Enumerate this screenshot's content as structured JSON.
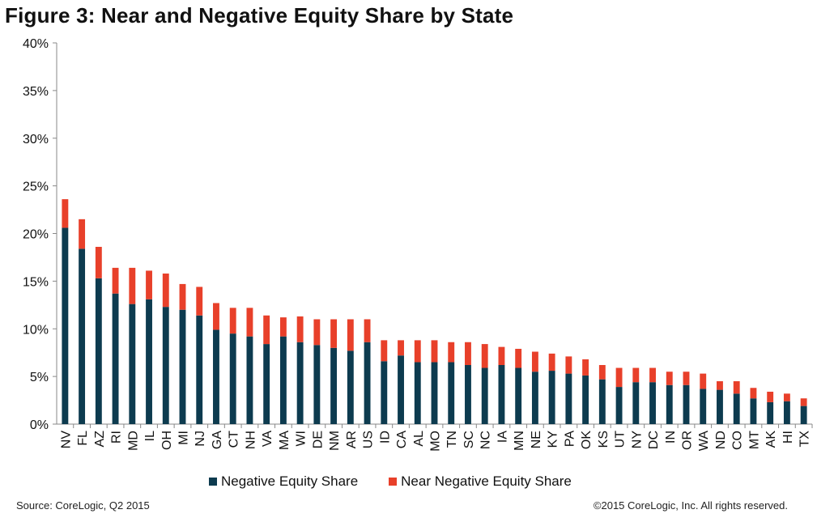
{
  "title": "Figure 3: Near and Negative Equity Share by State",
  "source": "Source: CoreLogic, Q2  2015",
  "copyright": "©2015 CoreLogic, Inc. All rights reserved.",
  "colors": {
    "negative": "#0d3b4f",
    "near_negative": "#e8402a"
  },
  "chart_data": {
    "type": "bar",
    "stacked": true,
    "categories": [
      "NV",
      "FL",
      "AZ",
      "RI",
      "MD",
      "IL",
      "OH",
      "MI",
      "NJ",
      "GA",
      "CT",
      "NH",
      "VA",
      "MA",
      "WI",
      "DE",
      "NM",
      "AR",
      "US",
      "ID",
      "CA",
      "AL",
      "MO",
      "TN",
      "SC",
      "NC",
      "IA",
      "MN",
      "NE",
      "KY",
      "PA",
      "OK",
      "KS",
      "UT",
      "NY",
      "DC",
      "IN",
      "OR",
      "WA",
      "ND",
      "CO",
      "MT",
      "AK",
      "HI",
      "TX"
    ],
    "series": [
      {
        "name": "Negative Equity Share",
        "values": [
          20.6,
          18.4,
          15.3,
          13.7,
          12.6,
          13.1,
          12.3,
          12.0,
          11.4,
          9.9,
          9.5,
          9.2,
          8.4,
          9.2,
          8.6,
          8.3,
          8.0,
          7.7,
          8.6,
          6.6,
          7.2,
          6.5,
          6.5,
          6.5,
          6.2,
          5.9,
          6.2,
          5.9,
          5.5,
          5.6,
          5.3,
          5.1,
          4.7,
          3.9,
          4.4,
          4.4,
          4.1,
          4.1,
          3.7,
          3.6,
          3.2,
          2.7,
          2.3,
          2.4,
          1.9
        ]
      },
      {
        "name": "Near Negative Equity Share",
        "values": [
          3.0,
          3.1,
          3.3,
          2.7,
          3.8,
          3.0,
          3.5,
          2.7,
          3.0,
          2.8,
          2.7,
          3.0,
          3.0,
          2.0,
          2.7,
          2.7,
          3.0,
          3.3,
          2.4,
          2.2,
          1.6,
          2.3,
          2.3,
          2.1,
          2.4,
          2.5,
          1.9,
          2.0,
          2.1,
          1.8,
          1.8,
          1.7,
          1.5,
          2.0,
          1.5,
          1.5,
          1.4,
          1.4,
          1.6,
          0.9,
          1.3,
          1.1,
          1.1,
          0.8,
          0.8
        ]
      }
    ],
    "ylim": [
      0,
      40
    ],
    "yticks": [
      "0%",
      "5%",
      "10%",
      "15%",
      "20%",
      "25%",
      "30%",
      "35%",
      "40%"
    ],
    "xlabel": "",
    "ylabel": "",
    "grid": false,
    "legend_position": "bottom"
  }
}
